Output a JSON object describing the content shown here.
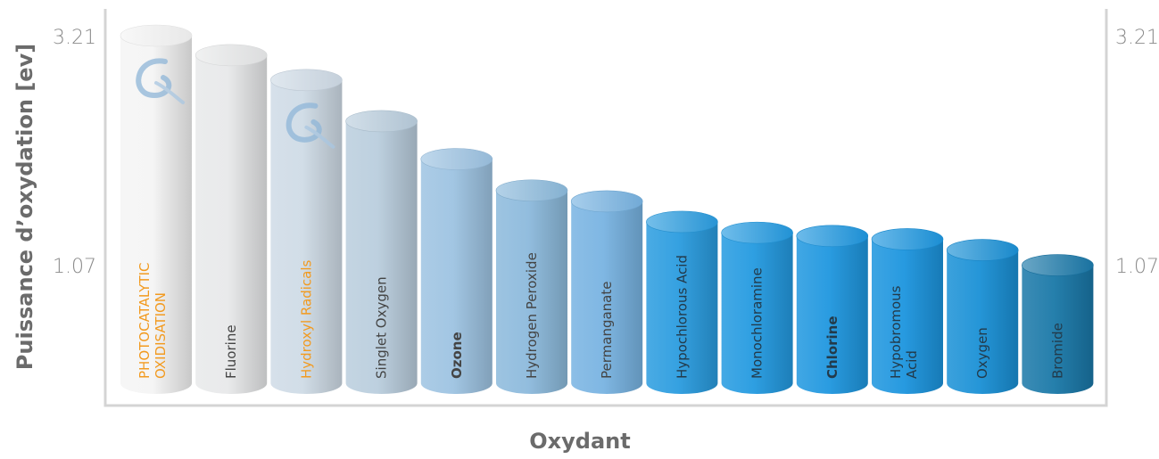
{
  "chart_data": {
    "type": "bar",
    "style": "3d-cylinder",
    "ylabel": "Puissance d’oxydation [ev]",
    "xlabel": "Oxydant",
    "ylim": [
      0,
      3.21
    ],
    "yticks": [
      1.07,
      3.21
    ],
    "ytick_labels": [
      "1.07",
      "3.21"
    ],
    "right_axis_ticks": [
      "1.07",
      "3.21"
    ],
    "grid": false,
    "categories": [
      "PHOTOCATALYTIC OXIDISATION",
      "Fluorine",
      "Hydroxyl Radicals",
      "Singlet Oxygen",
      "Ozone",
      "Hydrogen Peroxide",
      "Permanganate",
      "Hypochlorous Acid",
      "Monochloramine",
      "Chlorine",
      "Hypobromous Acid",
      "Oxygen",
      "Bromide"
    ],
    "label_lines": [
      [
        "PHOTOCATALYTIC",
        "OXIDISATION"
      ],
      [
        "Fluorine"
      ],
      [
        "Hydroxyl Radicals"
      ],
      [
        "Singlet Oxygen"
      ],
      [
        "Ozone"
      ],
      [
        "Hydrogen Peroxide"
      ],
      [
        "Permanganate"
      ],
      [
        "Hypochlorous Acid"
      ],
      [
        "Monochloramine"
      ],
      [
        "Chlorine"
      ],
      [
        "Hypobromous",
        "Acid"
      ],
      [
        "Oxygen"
      ],
      [
        "Bromide"
      ]
    ],
    "values": [
      3.21,
      3.03,
      2.8,
      2.42,
      2.07,
      1.78,
      1.68,
      1.49,
      1.39,
      1.36,
      1.33,
      1.23,
      1.09
    ],
    "highlighted": [
      0,
      2
    ],
    "bold": [
      4,
      9
    ],
    "colors": [
      "#f4f4f4",
      "#e8e9ea",
      "#cfdbe6",
      "#b9cddd",
      "#9dc3e2",
      "#8cbadc",
      "#78b3e1",
      "#2a9cdf",
      "#239ae0",
      "#1f97df",
      "#1c95de",
      "#1a90d6",
      "#1a78a8"
    ],
    "highlight_color": "#f29a1f",
    "label_color": "#444444",
    "logo": "swirl-logo-icon"
  }
}
